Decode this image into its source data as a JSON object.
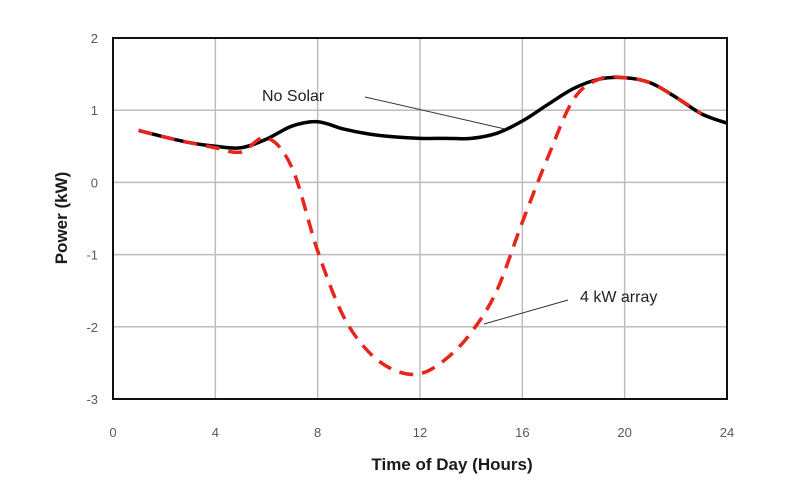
{
  "chart_data": {
    "type": "line",
    "title": "",
    "xlabel": "Time of Day (Hours)",
    "ylabel": "Power (kW)",
    "xlim": [
      0,
      24
    ],
    "ylim": [
      -3,
      2
    ],
    "xticks": [
      0,
      4,
      8,
      12,
      16,
      20,
      24
    ],
    "yticks": [
      2,
      1,
      0,
      -1,
      -2,
      -3
    ],
    "grid": true,
    "legend": "none (inline annotations)",
    "x": [
      1,
      2,
      3,
      4,
      5,
      6,
      7,
      8,
      9,
      10,
      11,
      12,
      13,
      14,
      15,
      16,
      17,
      18,
      19,
      20,
      21,
      22,
      23,
      24
    ],
    "series": [
      {
        "name": "No Solar",
        "color": "#000000",
        "style": "solid",
        "values": [
          0.72,
          0.63,
          0.55,
          0.5,
          0.48,
          0.6,
          0.78,
          0.84,
          0.74,
          0.67,
          0.63,
          0.61,
          0.61,
          0.61,
          0.68,
          0.85,
          1.08,
          1.3,
          1.43,
          1.45,
          1.38,
          1.18,
          0.95,
          0.82
        ]
      },
      {
        "name": "4 kW array",
        "color": "#e8241c",
        "style": "dashed",
        "values": [
          0.72,
          0.63,
          0.55,
          0.48,
          0.42,
          0.62,
          0.2,
          -0.95,
          -1.85,
          -2.35,
          -2.6,
          -2.65,
          -2.45,
          -2.08,
          -1.5,
          -0.55,
          0.35,
          1.15,
          1.43,
          1.45,
          1.38,
          1.18,
          0.95,
          null
        ]
      }
    ],
    "annotations": [
      {
        "text": "No Solar",
        "points_to": "No Solar",
        "target_x": 15.4
      },
      {
        "text": "4 kW array",
        "points_to": "4 kW array",
        "target_x": 14.3
      }
    ]
  }
}
